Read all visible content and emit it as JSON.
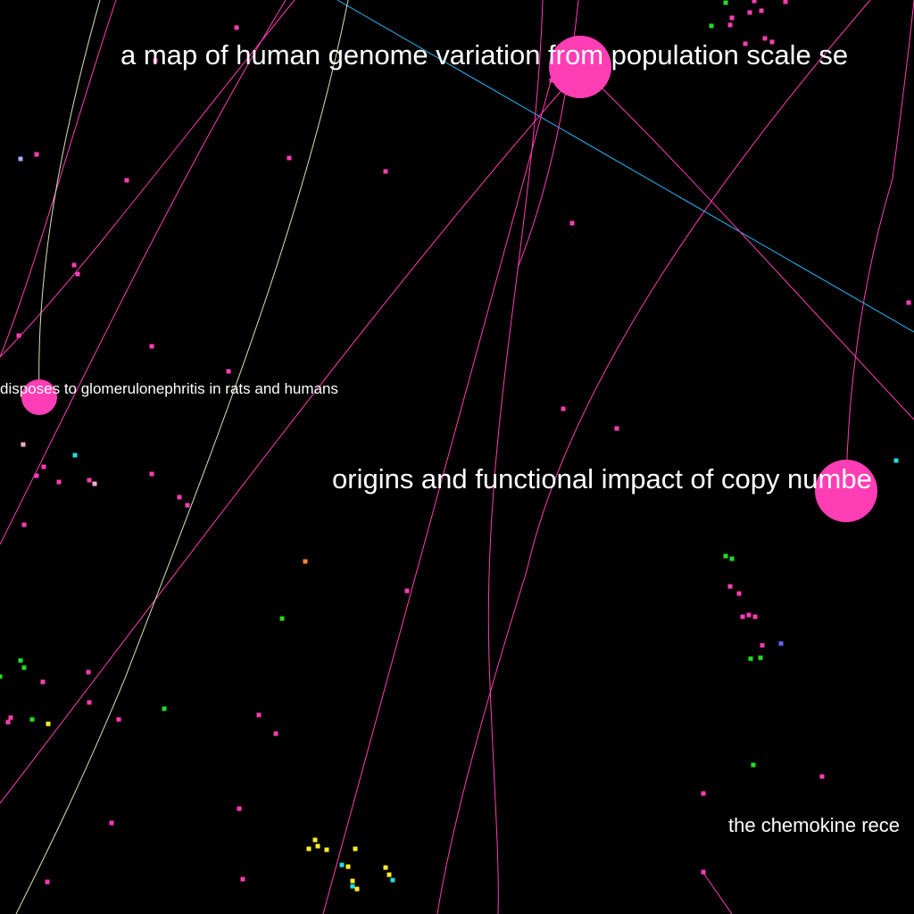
{
  "labels": {
    "node_a": "a map of human genome variation from population scale se",
    "node_b": "origins and functional impact of copy numbe",
    "node_c": "disposes to glomerulonephritis in rats and humans",
    "node_d": "the chemokine rece"
  },
  "colors": {
    "background": "#000000",
    "highlight_node": "#ff3db4",
    "edge_pink": "#ff3db4",
    "edge_blue": "#29b6f6",
    "edge_light": "#cfe8b0",
    "dot_green": "#22dd22",
    "dot_yellow": "#ffee22",
    "dot_cyan": "#22dddd",
    "dot_orange": "#ff8833",
    "dot_violet": "#6666ff",
    "dot_lavender": "#aaaaff",
    "dot_pale": "#ffaacc"
  }
}
